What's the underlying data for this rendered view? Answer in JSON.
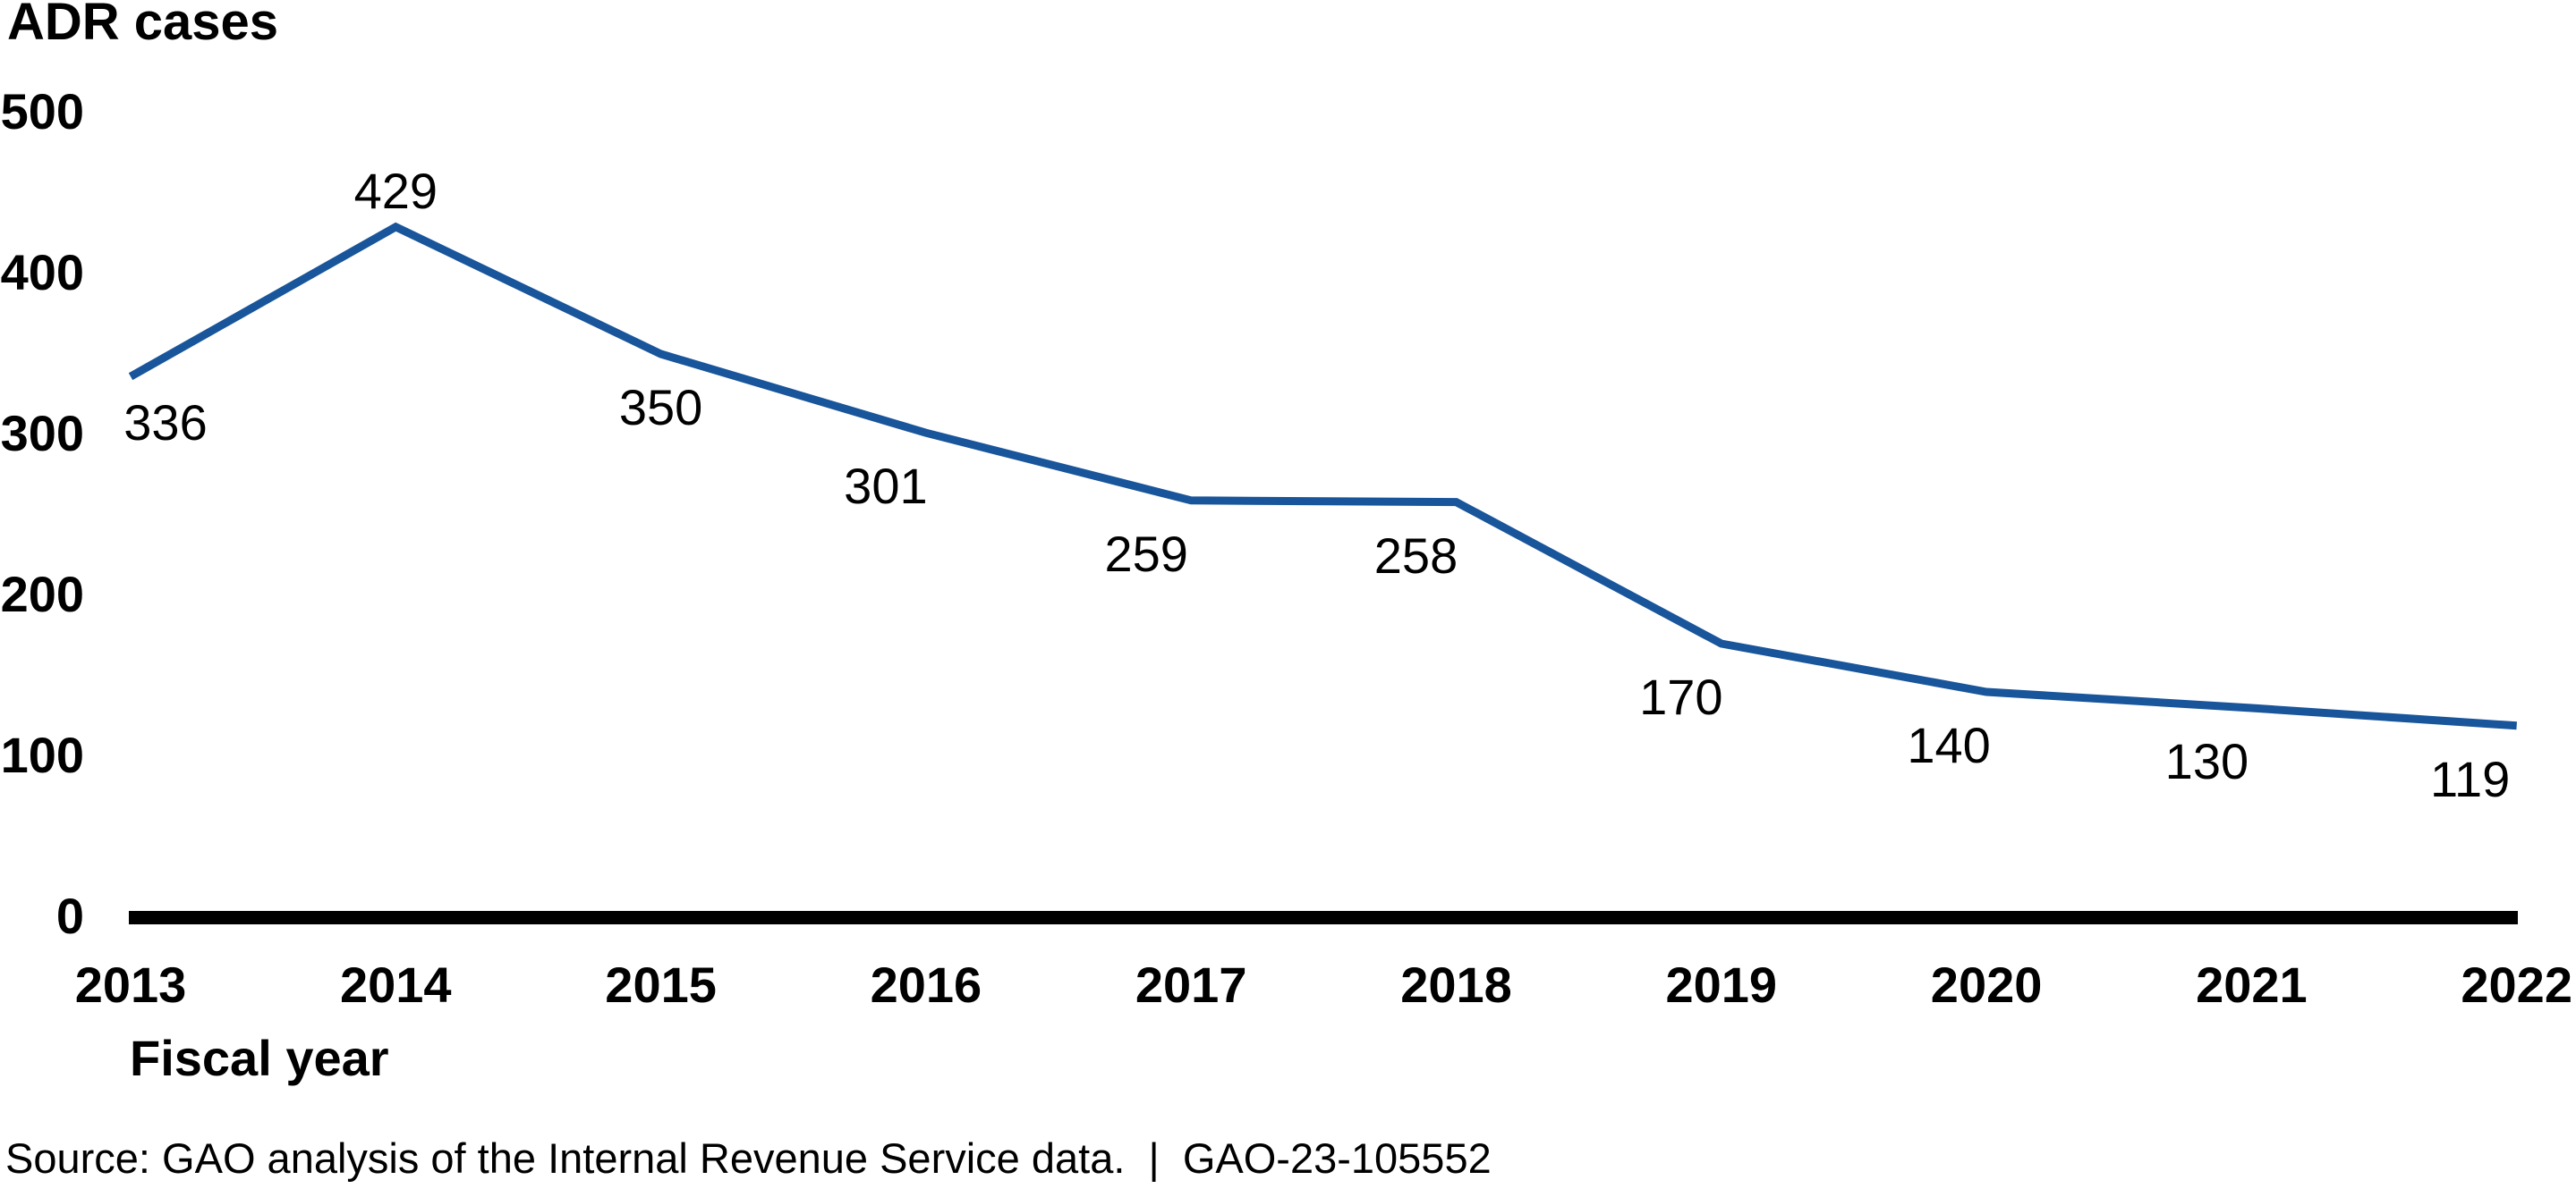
{
  "chart_data": {
    "type": "line",
    "title": "ADR cases",
    "xlabel": "Fiscal year",
    "series_name": "ADR cases",
    "categories": [
      "2013",
      "2014",
      "2015",
      "2016",
      "2017",
      "2018",
      "2019",
      "2020",
      "2021",
      "2022"
    ],
    "values": [
      336,
      429,
      350,
      301,
      259,
      258,
      170,
      140,
      130,
      119
    ],
    "y_ticks": [
      500,
      400,
      300,
      200,
      100,
      0
    ],
    "ylim": [
      0,
      500
    ],
    "grid": false,
    "legend_position": "none",
    "data_labels": true,
    "line_color": "#19559A",
    "axis_color": "#000000",
    "text_color": "#000000"
  },
  "source_note": "Source: GAO analysis of the Internal Revenue Service data.  |  GAO-23-105552"
}
